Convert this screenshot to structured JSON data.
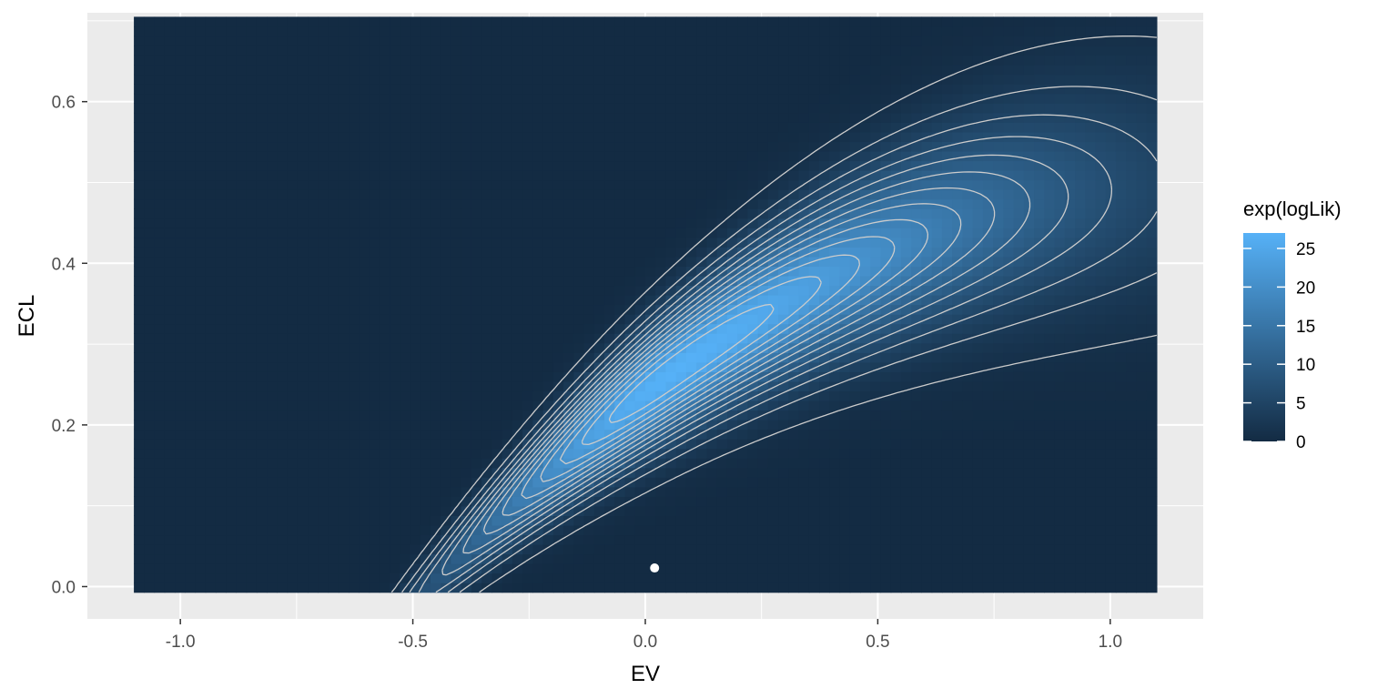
{
  "chart_data": {
    "type": "heatmap",
    "title": "",
    "xlabel": "EV",
    "ylabel": "ECL",
    "xlim": [
      -1.2,
      1.2
    ],
    "ylim": [
      -0.04,
      0.71
    ],
    "xticks": [
      -1.0,
      -0.5,
      0.0,
      0.5,
      1.0
    ],
    "xtick_labels": [
      "-1.0",
      "-0.5",
      "0.0",
      "0.5",
      "1.0"
    ],
    "yticks": [
      0.0,
      0.2,
      0.4,
      0.6
    ],
    "ytick_labels": [
      "0.0",
      "0.2",
      "0.4",
      "0.6"
    ],
    "grid": true,
    "heatmap_extent": {
      "x": [
        -1.1,
        1.1
      ],
      "y": [
        -0.007,
        0.705
      ]
    },
    "fill_variable": "exp(logLik)",
    "fill_range": [
      0,
      27
    ],
    "fill_colors": {
      "low": "#132B43",
      "high": "#56B1F7"
    },
    "density_ridge": {
      "description_points": [
        [
          -0.5,
          0.0
        ],
        [
          -0.25,
          0.12
        ],
        [
          0.0,
          0.24
        ],
        [
          0.2,
          0.32
        ],
        [
          0.4,
          0.38
        ],
        [
          0.6,
          0.43
        ],
        [
          0.8,
          0.46
        ]
      ],
      "peak": [
        0.05,
        0.25
      ],
      "peak_value": 26
    },
    "contour_levels": [
      1,
      3,
      5,
      7,
      9,
      11,
      13,
      15,
      17,
      19,
      21,
      23,
      25
    ],
    "contour_color": "#cccccc",
    "point": {
      "x": 0.02,
      "y": 0.023,
      "color": "#ffffff"
    },
    "legend": {
      "title": "exp(logLik)",
      "position": "right",
      "breaks": [
        0,
        5,
        10,
        15,
        20,
        25
      ],
      "labels": [
        "0",
        "5",
        "10",
        "15",
        "20",
        "25"
      ]
    }
  }
}
